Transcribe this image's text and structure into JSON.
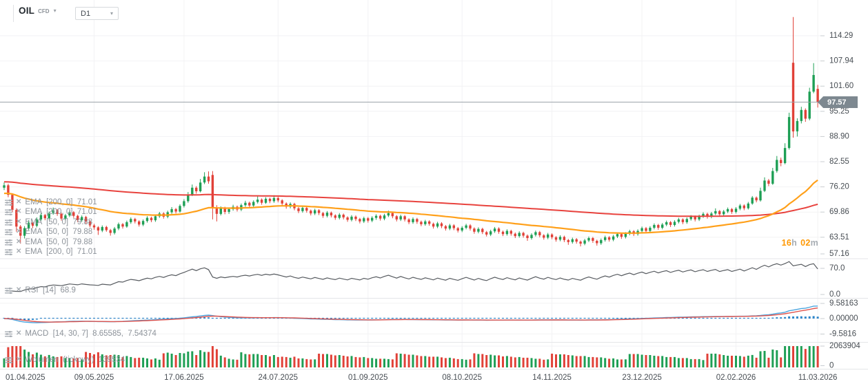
{
  "header": {
    "symbol": "OIL",
    "instrument_type": "CFD",
    "timeframe": "D1"
  },
  "price_axis": {
    "labels": [
      "114.29",
      "107.94",
      "101.60",
      "95.25",
      "88.90",
      "82.55",
      "76.20",
      "69.86",
      "63.51",
      "57.16"
    ],
    "current_price": "97.57"
  },
  "time_axis": {
    "labels": [
      "01.04.2025",
      "09.05.2025",
      "17.06.2025",
      "24.07.2025",
      "01.09.2025",
      "08.10.2025",
      "14.11.2025",
      "23.12.2025",
      "02.02.2026",
      "11.03.2026"
    ]
  },
  "indicators": {
    "rows": [
      {
        "text": "EMA  [200, 0]  71.01"
      },
      {
        "text": "EMA  [200, 0]  71.01"
      },
      {
        "text": "EMA  [50, 0]  79.88"
      },
      {
        "text": "EMA  [50, 0]  79.88"
      },
      {
        "text": "EMA  [50, 0]  79.88"
      },
      {
        "text": "EMA  [200, 0]  71.01"
      },
      {
        "text": "RSI  [14]  68.9"
      },
      {
        "text": "MACD  [14, 30, 7]  8.65585,  7.54374"
      },
      {
        "text": "Wolumen  (tickowy)  139534"
      }
    ],
    "rsi_axis_labels": [
      "70.0",
      "0.0"
    ],
    "macd_axis_labels": [
      "9.58163",
      "0.00000",
      "-9.5816"
    ],
    "volume_axis_labels": [
      "2063904",
      "0"
    ]
  },
  "session_countdown": {
    "hours": "16",
    "hours_unit": "h",
    "minutes": "02",
    "minutes_unit": "m"
  },
  "colors": {
    "bull": "#1e9f55",
    "bear": "#e14138",
    "ema200": "#e8423d",
    "ema50": "#ffa01a",
    "rsi_line": "#565a5f",
    "macd_line": "#4aa4de",
    "macd_signal": "#e0524c",
    "macd_hist": "#2f86c9",
    "price_line": "#99a1a7",
    "badge_bg": "#7d8890",
    "grid": "#f2f2f4",
    "separator": "#e4e5e8",
    "axis_text": "#474d53",
    "tick": "#c8ccd0",
    "countdown": "#ff9800"
  },
  "chart_data": {
    "type": "candlestick",
    "symbol": "OIL",
    "timeframe": "D1",
    "last_price": 97.57,
    "session_close_in": "16h 02m",
    "price_ticks": [
      114.29,
      107.94,
      101.6,
      95.25,
      88.9,
      82.55,
      76.2,
      69.86,
      63.51,
      57.16
    ],
    "date_ticks": [
      "01.04.2025",
      "09.05.2025",
      "17.06.2025",
      "24.07.2025",
      "01.09.2025",
      "08.10.2025",
      "14.11.2025",
      "23.12.2025",
      "02.02.2026",
      "11.03.2026"
    ],
    "date_tick_candle_index": [
      0,
      22,
      44,
      67,
      89,
      112,
      134,
      156,
      179,
      199
    ],
    "overlays": [
      {
        "name": "EMA",
        "period": 200,
        "shift": 0,
        "value": 71.01,
        "color_key": "ema200"
      },
      {
        "name": "EMA",
        "period": 50,
        "shift": 0,
        "value": 79.88,
        "color_key": "ema50"
      }
    ],
    "rsi": {
      "period": 14,
      "last": 68.9,
      "axis_levels": [
        70.0,
        0.0
      ]
    },
    "macd": {
      "fast": 14,
      "slow": 30,
      "signal": 7,
      "last_macd": 8.65585,
      "last_signal": 7.54374,
      "axis_levels": [
        9.58163,
        0.0,
        -9.5816
      ]
    },
    "volume": {
      "axis_max": 2063904,
      "last": 139534
    },
    "candles": [
      [
        76.0,
        77.3,
        75.4,
        76.6
      ],
      [
        76.6,
        77.0,
        73.6,
        74.2
      ],
      [
        74.2,
        74.6,
        69.8,
        70.4
      ],
      [
        70.4,
        70.8,
        64.9,
        66.2
      ],
      [
        66.2,
        66.6,
        61.9,
        63.9
      ],
      [
        63.9,
        66.3,
        63.2,
        65.8
      ],
      [
        65.8,
        67.8,
        65.3,
        67.2
      ],
      [
        67.2,
        67.7,
        65.8,
        66.4
      ],
      [
        66.4,
        68.5,
        66.0,
        68.0
      ],
      [
        68.0,
        69.6,
        67.6,
        69.1
      ],
      [
        69.1,
        69.4,
        67.8,
        68.3
      ],
      [
        68.3,
        70.0,
        67.9,
        69.6
      ],
      [
        69.6,
        71.0,
        69.2,
        70.3
      ],
      [
        70.3,
        70.6,
        68.9,
        69.4
      ],
      [
        69.4,
        69.7,
        67.7,
        68.2
      ],
      [
        68.2,
        69.4,
        67.8,
        69.0
      ],
      [
        69.0,
        70.3,
        68.6,
        69.8
      ],
      [
        69.8,
        70.1,
        68.4,
        68.9
      ],
      [
        68.9,
        69.2,
        67.3,
        67.8
      ],
      [
        67.8,
        69.0,
        67.4,
        68.6
      ],
      [
        68.6,
        68.9,
        66.9,
        67.4
      ],
      [
        67.4,
        67.8,
        66.0,
        66.5
      ],
      [
        66.5,
        66.9,
        65.4,
        66.0
      ],
      [
        66.0,
        66.3,
        64.1,
        65.2
      ],
      [
        65.2,
        66.5,
        64.8,
        66.1
      ],
      [
        66.1,
        66.4,
        64.9,
        65.3
      ],
      [
        65.3,
        65.6,
        63.9,
        64.6
      ],
      [
        64.6,
        66.1,
        64.2,
        65.7
      ],
      [
        65.7,
        67.2,
        65.3,
        66.8
      ],
      [
        66.8,
        67.1,
        65.7,
        66.2
      ],
      [
        66.2,
        67.7,
        65.9,
        67.3
      ],
      [
        67.3,
        68.5,
        66.9,
        68.1
      ],
      [
        68.1,
        68.4,
        67.0,
        67.5
      ],
      [
        67.5,
        67.8,
        66.2,
        66.7
      ],
      [
        66.7,
        68.0,
        66.3,
        67.6
      ],
      [
        67.6,
        68.8,
        67.2,
        68.4
      ],
      [
        68.4,
        68.7,
        67.3,
        67.8
      ],
      [
        67.8,
        69.2,
        67.4,
        68.8
      ],
      [
        68.8,
        69.9,
        68.4,
        69.5
      ],
      [
        69.5,
        69.8,
        68.2,
        68.7
      ],
      [
        68.7,
        70.2,
        68.3,
        69.8
      ],
      [
        69.8,
        71.1,
        69.4,
        70.6
      ],
      [
        70.6,
        70.9,
        69.5,
        70.0
      ],
      [
        70.0,
        71.8,
        69.7,
        71.4
      ],
      [
        71.4,
        73.1,
        71.0,
        72.6
      ],
      [
        72.6,
        74.9,
        72.2,
        74.2
      ],
      [
        74.2,
        76.8,
        73.9,
        76.0
      ],
      [
        76.0,
        76.4,
        74.5,
        75.1
      ],
      [
        75.1,
        78.2,
        74.8,
        77.3
      ],
      [
        77.3,
        79.9,
        76.9,
        78.8
      ],
      [
        78.8,
        80.1,
        77.0,
        77.6
      ],
      [
        79.2,
        80.2,
        68.0,
        71.0
      ],
      [
        71.0,
        71.6,
        67.5,
        69.4
      ],
      [
        69.4,
        71.3,
        69.0,
        70.8
      ],
      [
        70.8,
        71.2,
        69.3,
        69.9
      ],
      [
        69.9,
        71.0,
        69.4,
        70.6
      ],
      [
        70.6,
        71.7,
        70.2,
        71.2
      ],
      [
        71.2,
        71.5,
        70.0,
        70.5
      ],
      [
        70.5,
        72.0,
        70.1,
        71.6
      ],
      [
        71.6,
        72.7,
        71.2,
        72.2
      ],
      [
        72.2,
        72.5,
        71.0,
        71.5
      ],
      [
        71.5,
        72.8,
        71.1,
        72.4
      ],
      [
        72.4,
        73.8,
        72.0,
        73.0
      ],
      [
        73.0,
        73.3,
        71.7,
        72.2
      ],
      [
        72.2,
        73.6,
        71.9,
        73.2
      ],
      [
        73.2,
        73.5,
        72.1,
        72.6
      ],
      [
        72.6,
        74.1,
        72.2,
        73.4
      ],
      [
        73.4,
        73.7,
        72.3,
        72.8
      ],
      [
        72.8,
        73.1,
        71.5,
        72.0
      ],
      [
        72.0,
        72.3,
        70.7,
        71.2
      ],
      [
        71.2,
        72.3,
        70.8,
        71.9
      ],
      [
        71.9,
        72.2,
        70.3,
        70.8
      ],
      [
        70.8,
        71.1,
        69.6,
        70.1
      ],
      [
        70.1,
        71.3,
        69.7,
        70.9
      ],
      [
        70.9,
        71.2,
        69.7,
        70.2
      ],
      [
        70.2,
        70.5,
        69.0,
        69.5
      ],
      [
        69.5,
        70.7,
        69.1,
        70.3
      ],
      [
        70.3,
        70.6,
        69.1,
        69.6
      ],
      [
        69.6,
        69.9,
        68.4,
        68.9
      ],
      [
        68.9,
        70.1,
        68.5,
        69.7
      ],
      [
        69.7,
        70.0,
        68.5,
        69.0
      ],
      [
        69.0,
        69.3,
        67.9,
        68.4
      ],
      [
        68.4,
        69.6,
        68.0,
        69.2
      ],
      [
        69.2,
        69.5,
        68.0,
        68.5
      ],
      [
        68.5,
        68.8,
        67.4,
        67.9
      ],
      [
        67.9,
        69.1,
        67.5,
        68.7
      ],
      [
        68.7,
        69.0,
        67.6,
        68.1
      ],
      [
        68.1,
        68.4,
        67.0,
        67.5
      ],
      [
        67.5,
        68.7,
        67.1,
        68.3
      ],
      [
        68.3,
        68.6,
        67.2,
        67.7
      ],
      [
        67.7,
        68.8,
        67.3,
        68.4
      ],
      [
        68.4,
        69.3,
        67.9,
        68.9
      ],
      [
        68.9,
        69.2,
        67.7,
        68.2
      ],
      [
        68.2,
        69.4,
        67.8,
        69.0
      ],
      [
        69.0,
        70.2,
        68.6,
        69.6
      ],
      [
        69.6,
        69.9,
        68.3,
        68.8
      ],
      [
        68.8,
        69.1,
        67.5,
        68.0
      ],
      [
        68.0,
        69.2,
        67.6,
        68.8
      ],
      [
        68.8,
        69.1,
        67.5,
        68.0
      ],
      [
        68.0,
        68.3,
        66.8,
        67.3
      ],
      [
        67.3,
        68.5,
        66.9,
        68.1
      ],
      [
        68.1,
        68.4,
        66.9,
        67.4
      ],
      [
        67.4,
        67.7,
        66.3,
        66.8
      ],
      [
        66.8,
        67.9,
        66.4,
        67.5
      ],
      [
        67.5,
        67.8,
        66.4,
        66.9
      ],
      [
        66.9,
        67.2,
        65.7,
        66.2
      ],
      [
        66.2,
        67.4,
        65.8,
        67.0
      ],
      [
        67.0,
        67.3,
        65.8,
        66.3
      ],
      [
        66.3,
        66.6,
        65.2,
        65.7
      ],
      [
        65.7,
        66.9,
        65.3,
        66.5
      ],
      [
        66.5,
        66.8,
        65.3,
        65.8
      ],
      [
        65.8,
        66.1,
        64.7,
        65.2
      ],
      [
        65.2,
        66.3,
        64.8,
        65.9
      ],
      [
        65.9,
        66.9,
        65.5,
        66.5
      ],
      [
        66.5,
        66.8,
        65.2,
        65.7
      ],
      [
        65.7,
        66.0,
        64.4,
        64.9
      ],
      [
        64.9,
        66.0,
        64.5,
        65.6
      ],
      [
        65.6,
        65.9,
        64.3,
        64.8
      ],
      [
        64.8,
        65.1,
        63.7,
        64.2
      ],
      [
        64.2,
        65.4,
        63.8,
        65.0
      ],
      [
        65.0,
        66.1,
        64.6,
        65.7
      ],
      [
        65.7,
        66.0,
        64.4,
        64.9
      ],
      [
        64.9,
        65.2,
        63.8,
        64.3
      ],
      [
        64.3,
        65.5,
        63.9,
        65.1
      ],
      [
        65.1,
        65.4,
        63.9,
        64.4
      ],
      [
        64.4,
        64.7,
        63.3,
        63.8
      ],
      [
        63.8,
        65.0,
        63.4,
        64.6
      ],
      [
        64.6,
        64.9,
        63.4,
        63.9
      ],
      [
        63.9,
        64.2,
        62.6,
        63.3
      ],
      [
        63.3,
        64.5,
        62.9,
        64.1
      ],
      [
        64.1,
        65.2,
        63.7,
        64.8
      ],
      [
        64.8,
        65.1,
        63.5,
        64.0
      ],
      [
        64.0,
        64.3,
        62.9,
        63.4
      ],
      [
        63.4,
        64.6,
        63.0,
        64.2
      ],
      [
        64.2,
        64.5,
        63.0,
        63.5
      ],
      [
        63.5,
        63.8,
        62.4,
        62.9
      ],
      [
        62.9,
        64.0,
        62.5,
        63.6
      ],
      [
        63.6,
        63.9,
        62.3,
        62.8
      ],
      [
        62.8,
        63.1,
        61.6,
        62.3
      ],
      [
        62.3,
        63.4,
        61.9,
        63.0
      ],
      [
        63.0,
        63.3,
        61.9,
        62.4
      ],
      [
        62.4,
        62.7,
        61.2,
        61.9
      ],
      [
        61.9,
        63.1,
        61.5,
        62.7
      ],
      [
        62.7,
        63.7,
        62.3,
        63.3
      ],
      [
        63.3,
        63.6,
        62.1,
        62.6
      ],
      [
        62.6,
        62.9,
        61.4,
        62.0
      ],
      [
        62.0,
        63.2,
        61.6,
        62.8
      ],
      [
        62.8,
        63.9,
        62.4,
        63.5
      ],
      [
        63.5,
        63.8,
        62.4,
        62.9
      ],
      [
        62.9,
        64.1,
        62.5,
        63.7
      ],
      [
        63.7,
        64.7,
        63.3,
        64.3
      ],
      [
        64.3,
        64.6,
        63.1,
        63.6
      ],
      [
        63.6,
        64.8,
        63.2,
        64.4
      ],
      [
        64.4,
        65.4,
        64.0,
        65.0
      ],
      [
        65.0,
        65.3,
        63.8,
        64.3
      ],
      [
        64.3,
        65.5,
        63.9,
        65.1
      ],
      [
        65.1,
        66.2,
        64.7,
        65.8
      ],
      [
        65.8,
        66.1,
        64.6,
        65.1
      ],
      [
        65.1,
        66.3,
        64.7,
        65.9
      ],
      [
        65.9,
        67.0,
        65.5,
        66.6
      ],
      [
        66.6,
        66.9,
        65.4,
        65.9
      ],
      [
        65.9,
        67.1,
        65.5,
        66.7
      ],
      [
        66.7,
        67.7,
        66.3,
        67.3
      ],
      [
        67.3,
        67.6,
        66.1,
        66.6
      ],
      [
        66.6,
        67.8,
        66.2,
        67.4
      ],
      [
        67.4,
        68.4,
        67.0,
        68.0
      ],
      [
        68.0,
        68.3,
        66.8,
        67.3
      ],
      [
        67.3,
        68.5,
        66.9,
        68.1
      ],
      [
        68.1,
        69.1,
        67.7,
        68.7
      ],
      [
        68.7,
        69.0,
        67.5,
        68.0
      ],
      [
        68.0,
        69.2,
        67.6,
        68.8
      ],
      [
        68.8,
        69.8,
        68.4,
        69.4
      ],
      [
        69.4,
        69.7,
        68.2,
        68.7
      ],
      [
        68.7,
        69.9,
        68.3,
        69.5
      ],
      [
        69.5,
        70.8,
        69.1,
        70.1
      ],
      [
        70.1,
        70.4,
        68.8,
        69.3
      ],
      [
        69.3,
        70.4,
        68.9,
        70.0
      ],
      [
        70.0,
        71.0,
        69.6,
        70.6
      ],
      [
        70.6,
        70.9,
        69.4,
        69.9
      ],
      [
        69.9,
        71.1,
        69.5,
        70.7
      ],
      [
        70.7,
        71.9,
        70.3,
        71.5
      ],
      [
        71.5,
        71.8,
        70.3,
        70.8
      ],
      [
        70.8,
        72.4,
        70.5,
        72.0
      ],
      [
        72.0,
        73.9,
        71.7,
        73.5
      ],
      [
        73.5,
        73.8,
        72.3,
        72.8
      ],
      [
        72.8,
        76.0,
        72.5,
        75.2
      ],
      [
        75.2,
        78.6,
        74.9,
        77.8
      ],
      [
        77.8,
        78.2,
        76.4,
        77.0
      ],
      [
        77.0,
        81.0,
        76.7,
        80.2
      ],
      [
        80.2,
        84.0,
        79.8,
        83.0
      ],
      [
        83.0,
        83.6,
        81.4,
        82.2
      ],
      [
        82.2,
        87.2,
        81.9,
        86.0
      ],
      [
        86.0,
        94.9,
        85.6,
        93.8
      ],
      [
        107.5,
        119.0,
        88.6,
        90.2
      ],
      [
        90.2,
        93.5,
        88.9,
        92.8
      ],
      [
        92.8,
        96.4,
        92.2,
        95.6
      ],
      [
        95.6,
        96.0,
        92.6,
        93.4
      ],
      [
        93.4,
        101.2,
        93.0,
        100.2
      ],
      [
        100.2,
        107.4,
        99.8,
        104.4
      ],
      [
        100.9,
        101.9,
        96.2,
        97.57
      ]
    ]
  }
}
